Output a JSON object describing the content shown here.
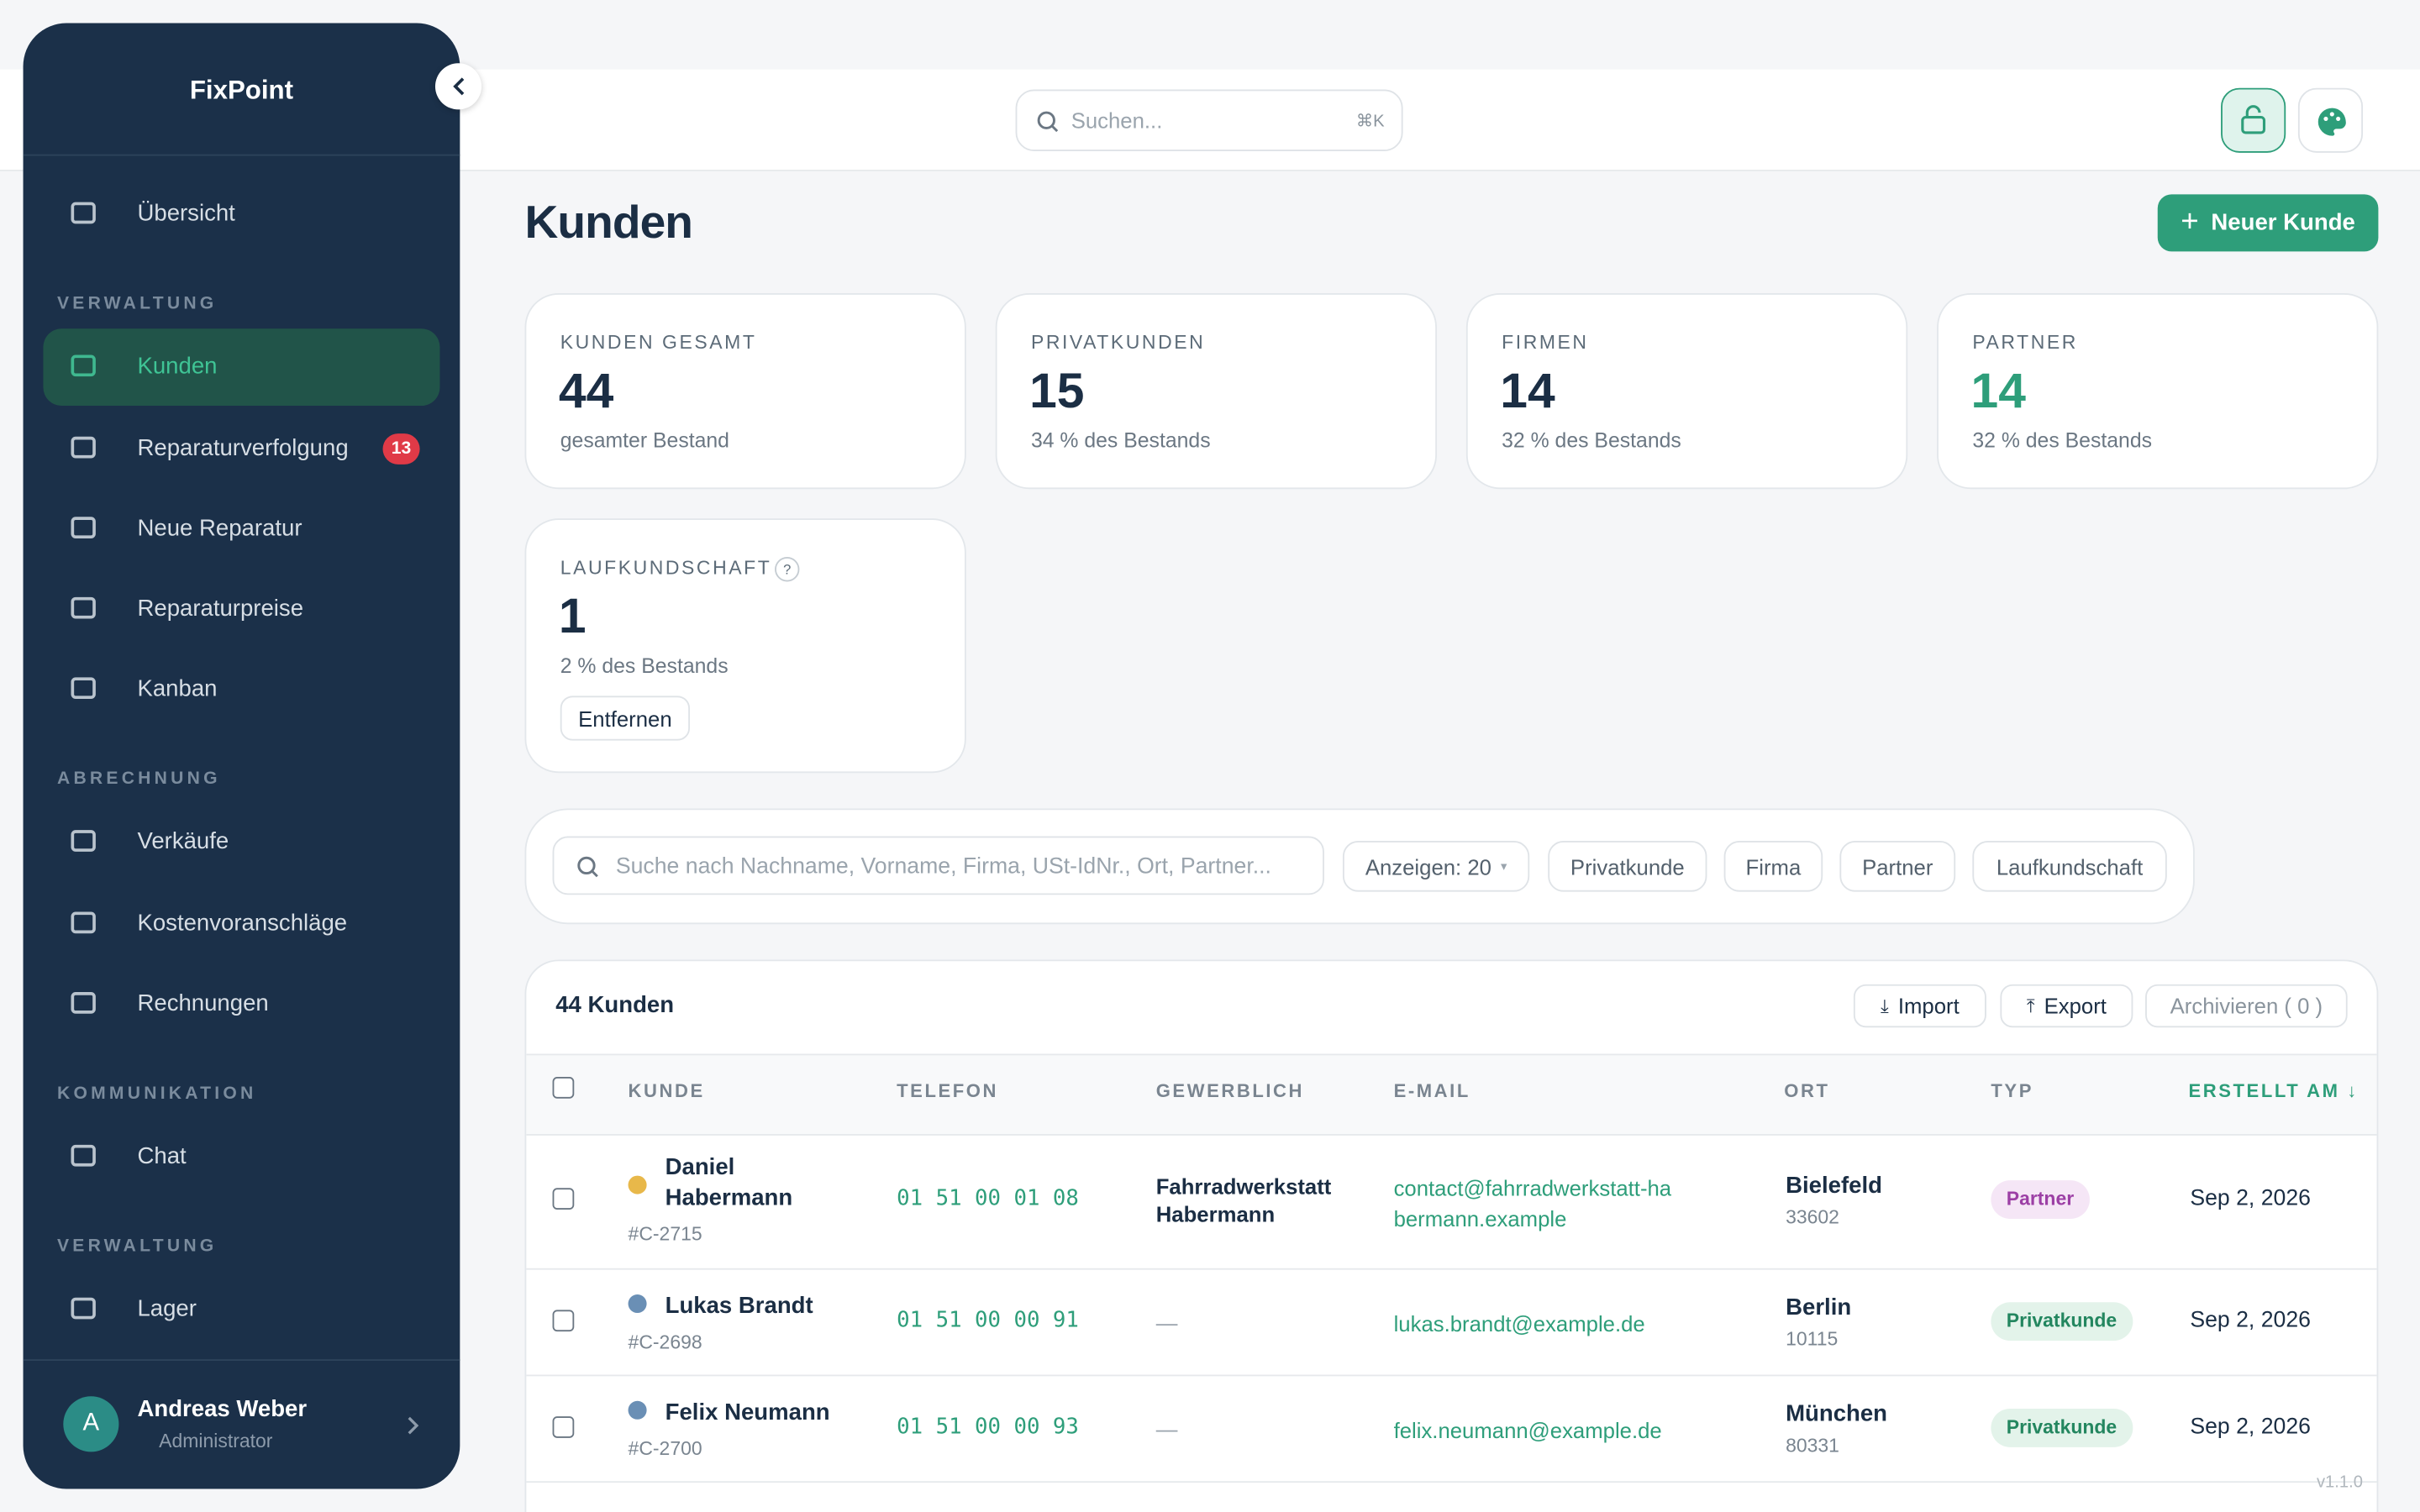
{
  "sidebar": {
    "brand": "FixPoint",
    "top_item": "Übersicht",
    "sections": [
      {
        "title": "VERWALTUNG",
        "items": [
          {
            "label": "Kunden"
          },
          {
            "label": "Reparaturverfolgung",
            "badge": "13"
          },
          {
            "label": "Neue Reparatur"
          },
          {
            "label": "Reparaturpreise"
          },
          {
            "label": "Kanban"
          }
        ]
      },
      {
        "title": "ABRECHNUNG",
        "items": [
          {
            "label": "Verkäufe"
          },
          {
            "label": "Kostenvoranschläge"
          },
          {
            "label": "Rechnungen"
          }
        ]
      },
      {
        "title": "KOMMUNIKATION",
        "items": [
          {
            "label": "Chat"
          }
        ]
      },
      {
        "title": "VERWALTUNG",
        "items": [
          {
            "label": "Lager"
          }
        ]
      }
    ],
    "user": {
      "initial": "A",
      "name": "Andreas Weber",
      "role": "Administrator"
    }
  },
  "header": {
    "search_placeholder": "Suchen...",
    "shortcut": "⌘K"
  },
  "page": {
    "title": "Kunden",
    "new_button": "Neuer Kunde"
  },
  "stats": [
    {
      "label": "KUNDEN GESAMT",
      "value": "44",
      "note": "gesamter Bestand"
    },
    {
      "label": "PRIVATKUNDEN",
      "value": "15",
      "note": "34 % des Bestands"
    },
    {
      "label": "FIRMEN",
      "value": "14",
      "note": "32 % des Bestands"
    },
    {
      "label": "PARTNER",
      "value": "14",
      "note": "32 % des Bestands"
    },
    {
      "label": "LAUFKUNDSCHAFT",
      "help": "?",
      "value": "1",
      "note": "2 % des Bestands",
      "button": "Entfernen"
    }
  ],
  "filters": {
    "search_placeholder": "Suche nach Nachname, Vorname, Firma, USt-IdNr., Ort, Partner...",
    "page_size": "Anzeigen: 20",
    "chips": [
      "Privatkunde",
      "Firma",
      "Partner",
      "Laufkundschaft"
    ]
  },
  "table": {
    "count_label": "44 Kunden",
    "actions": [
      "Import",
      "Export"
    ],
    "archive": "Archivieren ( 0 )",
    "columns": [
      "KUNDE",
      "TELEFON",
      "GEWERBLICH",
      "E-MAIL",
      "ORT",
      "TYP",
      "ERSTELLT AM ↓"
    ],
    "rows": [
      {
        "name": "Daniel Habermann",
        "id": "#C-2715",
        "phone": "01 51 00 01 08",
        "business": "Fahrradwerkstatt Habermann",
        "email": "contact@fahrradwerkstatt-habermann.example",
        "city": "Bielefeld",
        "zip": "33602",
        "type": "Partner",
        "created": "Sep 2, 2026"
      },
      {
        "name": "Lukas Brandt",
        "id": "#C-2698",
        "phone": "01 51 00 00 91",
        "business": "—",
        "email": "lukas.brandt@example.de",
        "city": "Berlin",
        "zip": "10115",
        "type": "Privatkunde",
        "created": "Sep 2, 2026"
      },
      {
        "name": "Felix Neumann",
        "id": "#C-2700",
        "phone": "01 51 00 00 93",
        "business": "—",
        "email": "felix.neumann@example.de",
        "city": "München",
        "zip": "80331",
        "type": "Privatkunde",
        "created": "Sep 2, 2026"
      }
    ]
  },
  "version": "v1.1.0"
}
